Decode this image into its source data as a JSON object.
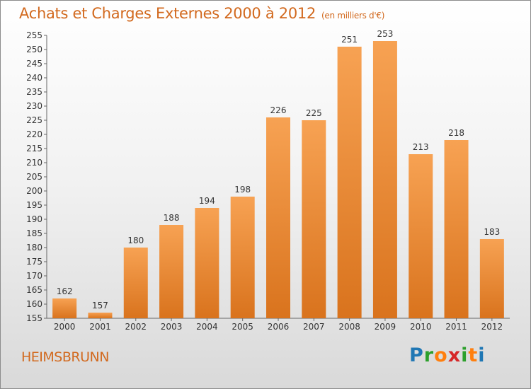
{
  "title": "Achats et Charges Externes 2000 à 2012",
  "subtitle": "(en milliers d'€)",
  "commune": "HEIMSBRUNN",
  "brand": {
    "letters": [
      "P",
      "r",
      "o",
      "x",
      "i",
      "t",
      "i"
    ],
    "colors": [
      "#1f77b4",
      "#2ca02c",
      "#ff7f0e",
      "#d62728",
      "#2ca02c",
      "#ff7f0e",
      "#1f77b4"
    ]
  },
  "chart_data": {
    "type": "bar",
    "categories": [
      "2000",
      "2001",
      "2002",
      "2003",
      "2004",
      "2005",
      "2006",
      "2007",
      "2008",
      "2009",
      "2010",
      "2011",
      "2012"
    ],
    "values": [
      162,
      157,
      180,
      188,
      194,
      198,
      226,
      225,
      251,
      253,
      213,
      218,
      183
    ],
    "data_labels": [
      "162",
      "157",
      "180",
      "188",
      "194",
      "198",
      "226",
      "225",
      "251",
      "253",
      "213",
      "218",
      "183"
    ],
    "y_ticks": [
      "155",
      "160",
      "165",
      "170",
      "175",
      "180",
      "185",
      "190",
      "195",
      "200",
      "205",
      "210",
      "215",
      "220",
      "225",
      "230",
      "235",
      "240",
      "245",
      "250",
      "255"
    ],
    "ylim": [
      155,
      255
    ],
    "bar_color_top": "#f7a253",
    "bar_color_bottom": "#d9731d",
    "grid": false,
    "legend": "none"
  }
}
